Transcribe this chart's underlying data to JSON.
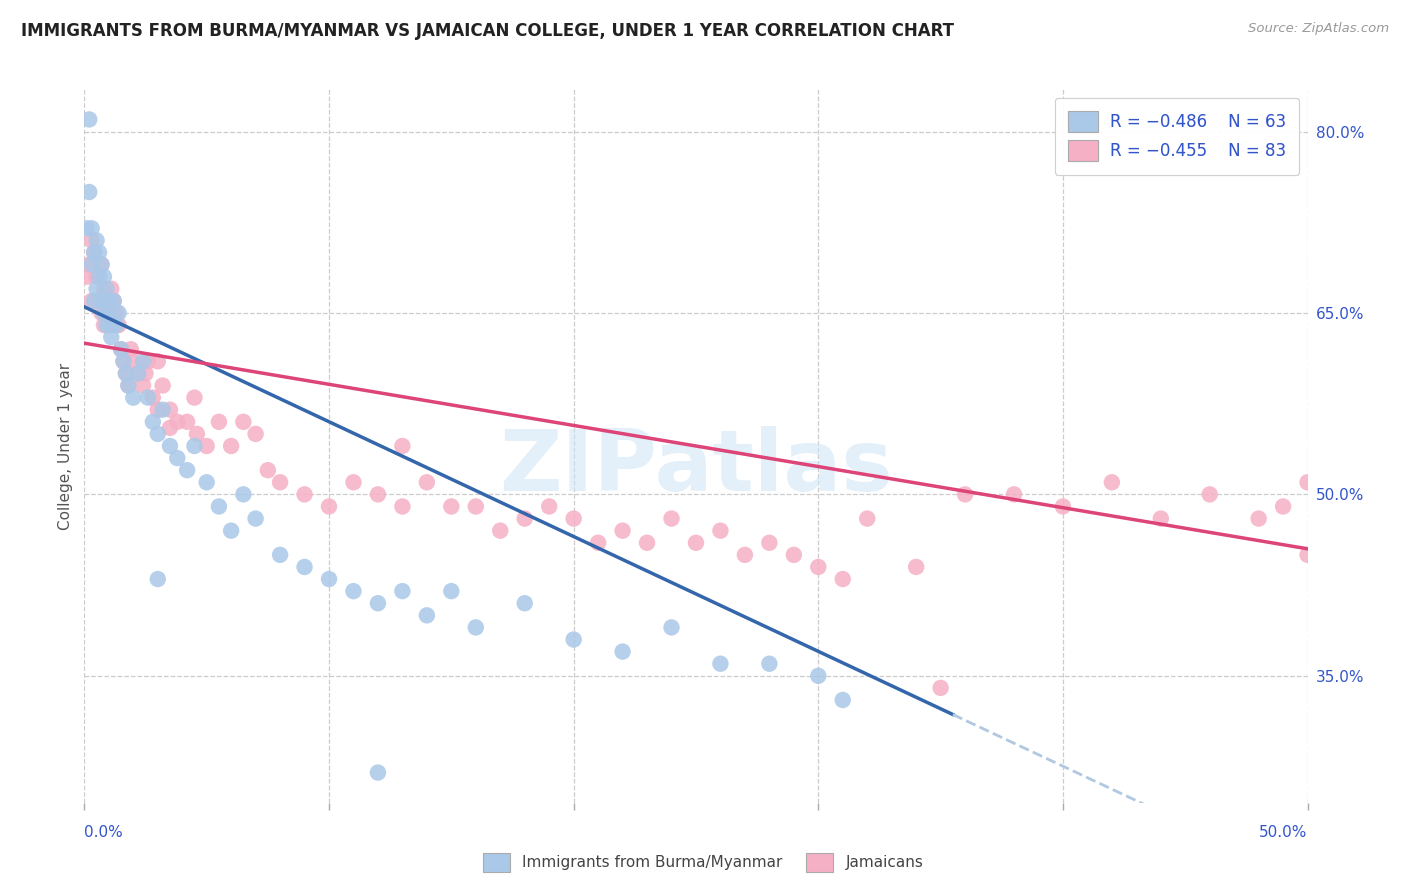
{
  "title": "IMMIGRANTS FROM BURMA/MYANMAR VS JAMAICAN COLLEGE, UNDER 1 YEAR CORRELATION CHART",
  "source": "Source: ZipAtlas.com",
  "ylabel": "College, Under 1 year",
  "right_yticks": [
    0.35,
    0.5,
    0.65,
    0.8
  ],
  "right_yticklabels": [
    "35.0%",
    "50.0%",
    "65.0%",
    "80.0%"
  ],
  "xmin": 0.0,
  "xmax": 0.5,
  "ymin": 0.245,
  "ymax": 0.835,
  "blue_color": "#aac8e8",
  "pink_color": "#f5b0c5",
  "blue_line_color": "#3366aa",
  "pink_line_color": "#dd4477",
  "dashed_color": "#b0c8e0",
  "legend_text_color": "#3355cc",
  "watermark": "ZIPatlas",
  "blue_n": 63,
  "pink_n": 83,
  "blue_line_x0": 0.0,
  "blue_line_y0": 0.655,
  "blue_line_x1": 0.355,
  "blue_line_y1": 0.318,
  "pink_line_x0": 0.0,
  "pink_line_y0": 0.625,
  "pink_line_x1": 0.5,
  "pink_line_y1": 0.455,
  "blue_scatter_x": [
    0.001,
    0.002,
    0.002,
    0.003,
    0.003,
    0.004,
    0.004,
    0.005,
    0.005,
    0.006,
    0.006,
    0.007,
    0.007,
    0.008,
    0.008,
    0.009,
    0.009,
    0.01,
    0.01,
    0.011,
    0.011,
    0.012,
    0.013,
    0.014,
    0.015,
    0.016,
    0.017,
    0.018,
    0.02,
    0.022,
    0.024,
    0.026,
    0.028,
    0.03,
    0.032,
    0.035,
    0.038,
    0.042,
    0.045,
    0.05,
    0.055,
    0.06,
    0.065,
    0.07,
    0.08,
    0.09,
    0.1,
    0.11,
    0.12,
    0.13,
    0.14,
    0.15,
    0.16,
    0.18,
    0.2,
    0.22,
    0.24,
    0.26,
    0.28,
    0.3,
    0.12,
    0.31,
    0.03
  ],
  "blue_scatter_y": [
    0.72,
    0.81,
    0.75,
    0.69,
    0.72,
    0.7,
    0.66,
    0.67,
    0.71,
    0.68,
    0.7,
    0.66,
    0.69,
    0.65,
    0.68,
    0.64,
    0.67,
    0.66,
    0.65,
    0.64,
    0.63,
    0.66,
    0.64,
    0.65,
    0.62,
    0.61,
    0.6,
    0.59,
    0.58,
    0.6,
    0.61,
    0.58,
    0.56,
    0.55,
    0.57,
    0.54,
    0.53,
    0.52,
    0.54,
    0.51,
    0.49,
    0.47,
    0.5,
    0.48,
    0.45,
    0.44,
    0.43,
    0.42,
    0.41,
    0.42,
    0.4,
    0.42,
    0.39,
    0.41,
    0.38,
    0.37,
    0.39,
    0.36,
    0.36,
    0.35,
    0.27,
    0.33,
    0.43
  ],
  "pink_scatter_x": [
    0.001,
    0.002,
    0.003,
    0.003,
    0.004,
    0.005,
    0.006,
    0.007,
    0.007,
    0.008,
    0.008,
    0.009,
    0.01,
    0.011,
    0.012,
    0.013,
    0.014,
    0.015,
    0.016,
    0.017,
    0.018,
    0.019,
    0.02,
    0.022,
    0.024,
    0.026,
    0.028,
    0.03,
    0.032,
    0.035,
    0.038,
    0.042,
    0.046,
    0.05,
    0.055,
    0.06,
    0.065,
    0.07,
    0.075,
    0.08,
    0.09,
    0.1,
    0.11,
    0.12,
    0.13,
    0.14,
    0.15,
    0.16,
    0.17,
    0.18,
    0.19,
    0.2,
    0.21,
    0.22,
    0.23,
    0.24,
    0.25,
    0.26,
    0.27,
    0.28,
    0.29,
    0.3,
    0.31,
    0.32,
    0.34,
    0.36,
    0.38,
    0.4,
    0.42,
    0.44,
    0.46,
    0.48,
    0.49,
    0.5,
    0.13,
    0.55,
    0.35,
    0.5,
    0.03,
    0.01,
    0.025,
    0.045,
    0.035
  ],
  "pink_scatter_y": [
    0.68,
    0.69,
    0.71,
    0.66,
    0.7,
    0.68,
    0.66,
    0.65,
    0.69,
    0.64,
    0.67,
    0.66,
    0.65,
    0.67,
    0.66,
    0.65,
    0.64,
    0.62,
    0.61,
    0.6,
    0.59,
    0.62,
    0.61,
    0.6,
    0.59,
    0.61,
    0.58,
    0.57,
    0.59,
    0.57,
    0.56,
    0.56,
    0.55,
    0.54,
    0.56,
    0.54,
    0.56,
    0.55,
    0.52,
    0.51,
    0.5,
    0.49,
    0.51,
    0.5,
    0.49,
    0.51,
    0.49,
    0.49,
    0.47,
    0.48,
    0.49,
    0.48,
    0.46,
    0.47,
    0.46,
    0.48,
    0.46,
    0.47,
    0.45,
    0.46,
    0.45,
    0.44,
    0.43,
    0.48,
    0.44,
    0.5,
    0.5,
    0.49,
    0.51,
    0.48,
    0.5,
    0.48,
    0.49,
    0.45,
    0.54,
    0.51,
    0.34,
    0.51,
    0.61,
    0.64,
    0.6,
    0.58,
    0.555
  ]
}
